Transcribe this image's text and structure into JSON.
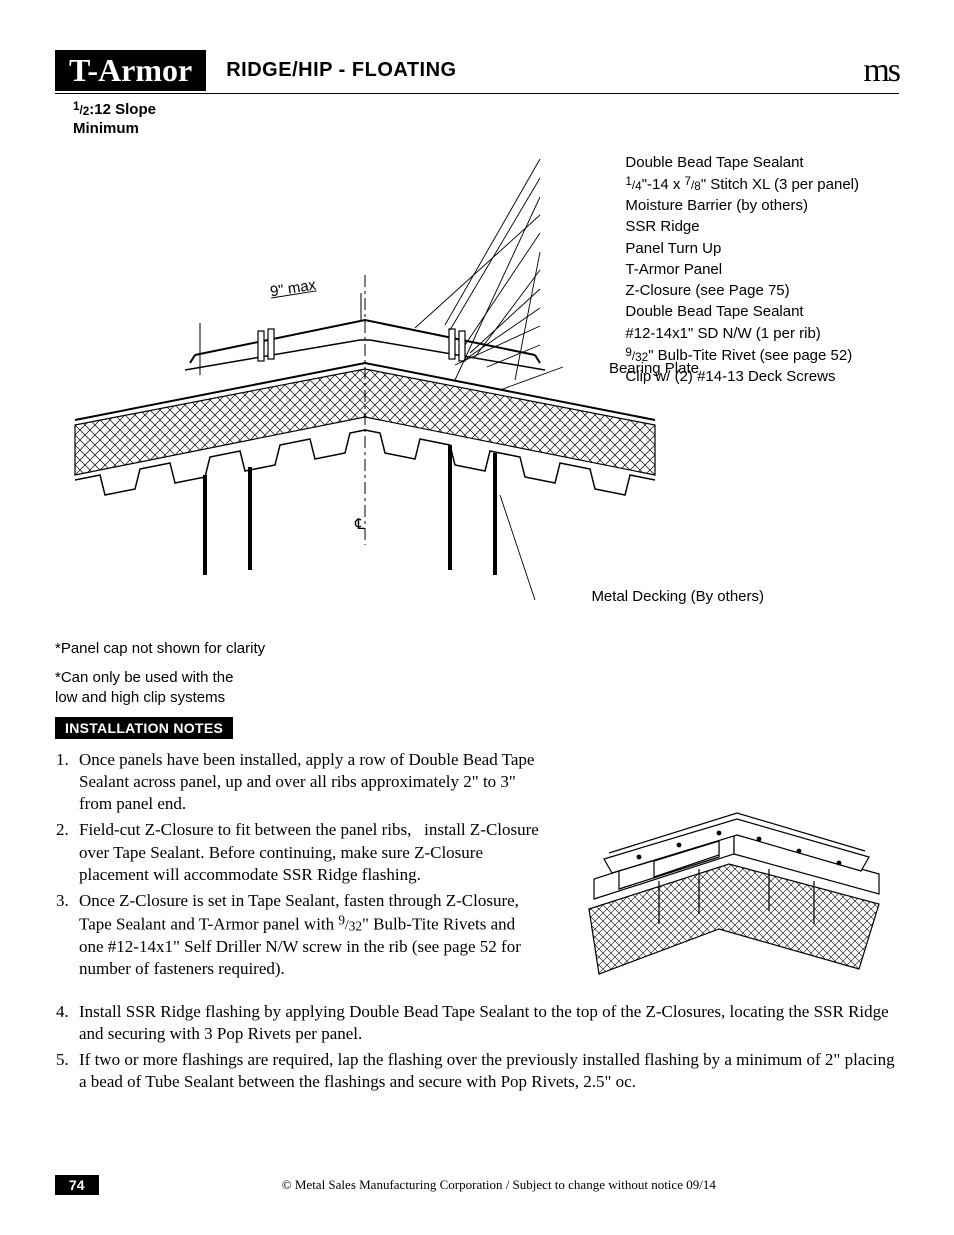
{
  "header": {
    "product": "T-Armor",
    "section": "RIDGE/HIP - FLOATING",
    "logo": "ms"
  },
  "slope_note_html": "<span class='frac'><span class='top'>1</span>/<span class='bot'>2</span></span>:12 Slope<br>Minimum",
  "diagram": {
    "nine_max": "9\" max",
    "cl": "℄",
    "callouts": [
      "Double Bead Tape Sealant",
      "<span class='frac'><span class='top'>1</span>/<span class='bot'>4</span></span>\"-14 x <span class='frac'><span class='top'>7</span>/<span class='bot'>8</span></span>\" Stitch XL (3 per panel)",
      "Moisture Barrier (by others)",
      "SSR Ridge",
      "Panel Turn Up",
      "T-Armor Panel",
      "Z-Closure (see Page 75)",
      "Double Bead Tape Sealant",
      "#12-14x1\" SD N/W (1 per rib)",
      "<span class='frac'><span class='top'>9</span>/<span class='bot'>32</span></span>\" Bulb-Tite Rivet (see page 52)",
      "Clip w/ (2) #14-13 Deck Screws"
    ],
    "bearing_plate": "Bearing Plate",
    "metal_decking": "Metal Decking (By others)"
  },
  "footnotes": [
    "*Panel cap not shown for clarity",
    "*Can only be used with the<br>low and high clip systems"
  ],
  "install_header": "INSTALLATION NOTES",
  "install_notes_col": [
    "Once panels have been installed, apply a row of Double Bead Tape Sealant across panel, up and over all ribs approximately 2\" to 3\" from panel end.",
    "Field-cut Z-Closure to fit between the panel ribs,&nbsp;&nbsp; install Z-Closure over Tape Sealant. Before continuing, make sure Z-Closure placement will accommodate SSR Ridge flashing.",
    "Once Z-Closure is set in Tape Sealant, fasten through Z-Closure, Tape Sealant and T-Armor panel with <span class='frac'><span class='top'>9</span>/<span class='bot'>32</span></span>\" Bulb-Tite Rivets and one #12-14x1\" Self Driller N/W screw in the rib (see page 52 for number of fasteners required)."
  ],
  "install_notes_wide": [
    "Install SSR Ridge flashing by applying Double Bead Tape Sealant to the top of the Z-Closures, locating the SSR Ridge and securing with 3 Pop Rivets per panel.",
    "If two or more flashings are required, lap the flashing over the previously installed flashing by a minimum of 2\" placing a bead of Tube Sealant between the flashings and secure with Pop Rivets, 2.5\" oc."
  ],
  "footer": {
    "page": "74",
    "copyright": "© Metal Sales Manufacturing Corporation / Subject to change without notice 09/14"
  },
  "style": {
    "page_bg": "#ffffff",
    "text_color": "#000000",
    "badge_bg": "#000000",
    "badge_fg": "#ffffff",
    "stroke": "#000000",
    "stroke_width": 1.2
  }
}
